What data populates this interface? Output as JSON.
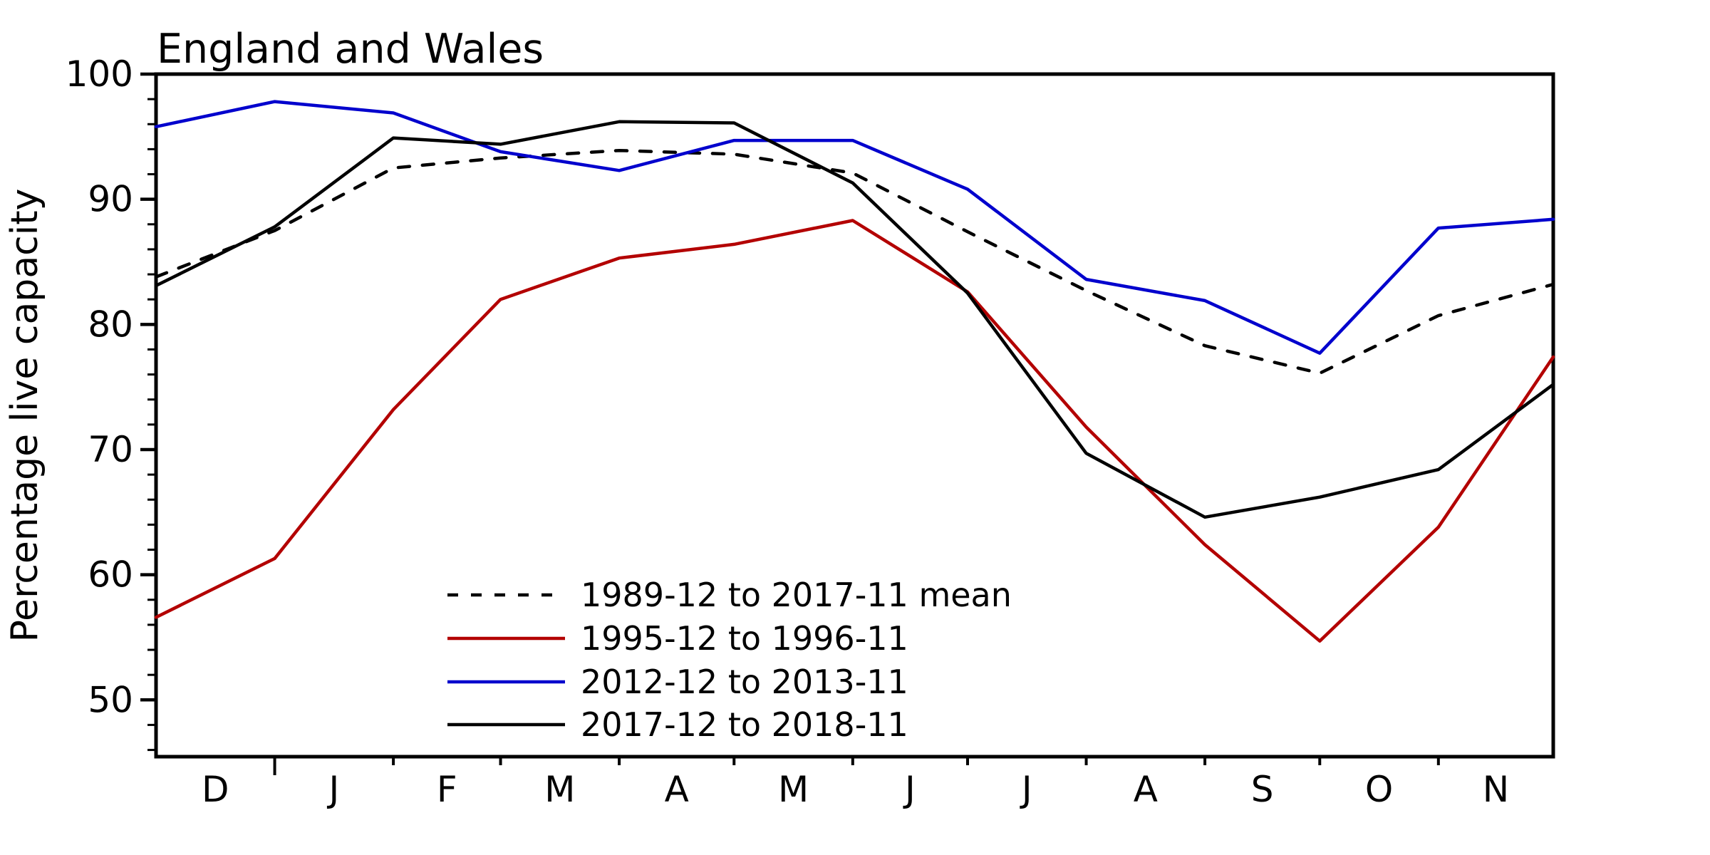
{
  "chart_data": {
    "type": "line",
    "title": "England and Wales",
    "ylabel": "Percentage live capacity",
    "xlabel": "",
    "ylim": [
      45.5,
      100
    ],
    "yticks": [
      50,
      60,
      70,
      80,
      90,
      100
    ],
    "y_minor_step": 2,
    "grid": false,
    "legend_position": "lower-center",
    "x_month_labels": [
      "D",
      "J",
      "F",
      "M",
      "A",
      "M",
      "J",
      "J",
      "A",
      "S",
      "O",
      "N"
    ],
    "x_days": [
      0,
      31,
      62,
      90,
      121,
      151,
      182,
      212,
      243,
      274,
      304,
      335,
      365
    ],
    "x_total_days": 365,
    "series": [
      {
        "name": "1989-12 to 2017-11 mean",
        "color": "#000000",
        "dash": true,
        "values": [
          83.8,
          87.5,
          92.5,
          93.3,
          93.9,
          93.6,
          92.1,
          87.4,
          82.7,
          78.3,
          76.1,
          80.7,
          83.2
        ]
      },
      {
        "name": "1995-12 to 1996-11",
        "color": "#b30000",
        "dash": false,
        "values": [
          56.6,
          61.3,
          73.2,
          82.0,
          85.3,
          86.4,
          88.3,
          82.6,
          71.8,
          62.4,
          54.7,
          63.8,
          77.4
        ]
      },
      {
        "name": "2012-12 to 2013-11",
        "color": "#0000cd",
        "dash": false,
        "values": [
          95.8,
          97.8,
          96.9,
          93.8,
          92.3,
          94.7,
          94.7,
          90.8,
          83.6,
          81.9,
          77.7,
          87.7,
          88.4
        ]
      },
      {
        "name": "2017-12 to 2018-11",
        "color": "#000000",
        "dash": false,
        "values": [
          83.1,
          87.8,
          94.9,
          94.4,
          96.2,
          96.1,
          91.3,
          82.5,
          69.7,
          64.6,
          66.2,
          68.4,
          75.2
        ]
      }
    ]
  }
}
